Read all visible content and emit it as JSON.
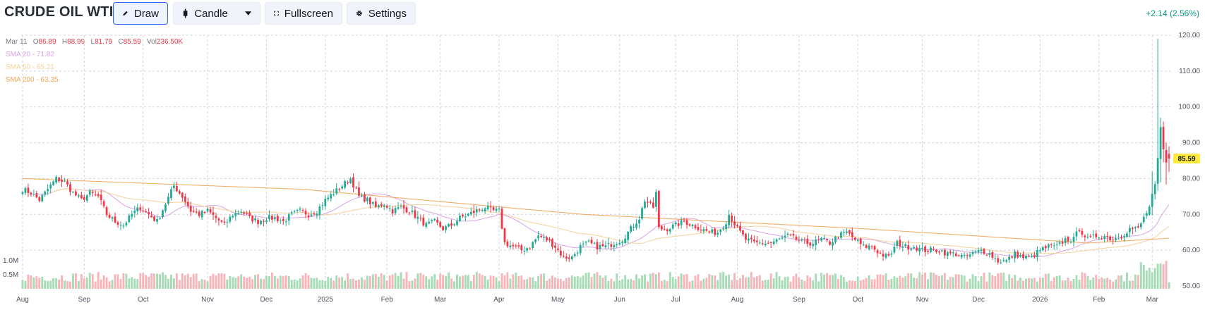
{
  "header": {
    "title": "CRUDE OIL WTI",
    "draw_label": "Draw",
    "chart_type_label": "Candle",
    "fullscreen_label": "Fullscreen",
    "settings_label": "Settings",
    "change_text": "+2.14 (2.56%)"
  },
  "legend": {
    "date": "Mar 11",
    "open_key": "O",
    "open": "86.89",
    "high_key": "H",
    "high": "88.99",
    "low_key": "L",
    "low": "81.79",
    "close_key": "C",
    "close": "85.59",
    "vol_key": "Vol",
    "vol": "236.50K",
    "sma20": "SMA 20 - 71.82",
    "sma50": "SMA 50 - 65.21",
    "sma200": "SMA 200 - 63.35"
  },
  "colors": {
    "up": "#22ab94",
    "down": "#f23645",
    "up_vol": "#a5dcb5",
    "down_vol": "#f9b4b9",
    "sma20": "#d9a3e6",
    "sma50": "#f3d29a",
    "sma200": "#f2a65a",
    "grid": "#d1d4dc",
    "last_price_bg": "#ffeb3b"
  },
  "chart_data": {
    "type": "candlestick",
    "title": "CRUDE OIL WTI",
    "ylim": [
      50,
      120
    ],
    "y_ticks": [
      "50.00",
      "60.00",
      "70.00",
      "80.00",
      "90.00",
      "100.00",
      "110.00",
      "120.00"
    ],
    "volume_ticks": [
      "1.0M",
      "0.5M"
    ],
    "volume_tick_values": [
      1000000,
      500000
    ],
    "x_labels": [
      "Aug",
      "Sep",
      "Oct",
      "Nov",
      "Dec",
      "2025",
      "Feb",
      "Mar",
      "Apr",
      "May",
      "Jun",
      "Jul",
      "Aug",
      "Sep",
      "Oct",
      "Nov",
      "Dec",
      "2026",
      "Feb",
      "Mar"
    ],
    "month_index": [
      0,
      22,
      43,
      66,
      87,
      108,
      130,
      149,
      170,
      191,
      213,
      233,
      255,
      277,
      298,
      321,
      341,
      363,
      384,
      403
    ],
    "grid": true,
    "last_price": "85.59",
    "close_path": [
      [
        0,
        77
      ],
      [
        3,
        76
      ],
      [
        6,
        74
      ],
      [
        9,
        77
      ],
      [
        12,
        80
      ],
      [
        15,
        79
      ],
      [
        18,
        76
      ],
      [
        21,
        74
      ],
      [
        24,
        76
      ],
      [
        27,
        75
      ],
      [
        30,
        70
      ],
      [
        33,
        68
      ],
      [
        36,
        67
      ],
      [
        39,
        70
      ],
      [
        42,
        72
      ],
      [
        45,
        70
      ],
      [
        48,
        68
      ],
      [
        51,
        73
      ],
      [
        54,
        78
      ],
      [
        57,
        75
      ],
      [
        60,
        71
      ],
      [
        63,
        70
      ],
      [
        66,
        71
      ],
      [
        69,
        69
      ],
      [
        72,
        67
      ],
      [
        75,
        70
      ],
      [
        78,
        71
      ],
      [
        81,
        69
      ],
      [
        84,
        68
      ],
      [
        87,
        69
      ],
      [
        90,
        69
      ],
      [
        93,
        68
      ],
      [
        96,
        70
      ],
      [
        99,
        71
      ],
      [
        102,
        70
      ],
      [
        105,
        71
      ],
      [
        108,
        74
      ],
      [
        111,
        76
      ],
      [
        114,
        78
      ],
      [
        117,
        80
      ],
      [
        120,
        75
      ],
      [
        123,
        74
      ],
      [
        126,
        72
      ],
      [
        129,
        73
      ],
      [
        132,
        71
      ],
      [
        135,
        72
      ],
      [
        138,
        71
      ],
      [
        141,
        69
      ],
      [
        144,
        67
      ],
      [
        147,
        68
      ],
      [
        150,
        66
      ],
      [
        153,
        67
      ],
      [
        156,
        69
      ],
      [
        159,
        70
      ],
      [
        162,
        71
      ],
      [
        165,
        72
      ],
      [
        168,
        71
      ],
      [
        170,
        71
      ],
      [
        172,
        62
      ],
      [
        175,
        61
      ],
      [
        178,
        60
      ],
      [
        181,
        61
      ],
      [
        184,
        64
      ],
      [
        187,
        63
      ],
      [
        190,
        61
      ],
      [
        193,
        58
      ],
      [
        196,
        58
      ],
      [
        199,
        61
      ],
      [
        202,
        62
      ],
      [
        205,
        61
      ],
      [
        208,
        61
      ],
      [
        211,
        62
      ],
      [
        214,
        63
      ],
      [
        217,
        66
      ],
      [
        220,
        69
      ],
      [
        222,
        74
      ],
      [
        225,
        72
      ],
      [
        226,
        76
      ],
      [
        227,
        66
      ],
      [
        230,
        66
      ],
      [
        233,
        67
      ],
      [
        236,
        68
      ],
      [
        239,
        67
      ],
      [
        242,
        66
      ],
      [
        245,
        65
      ],
      [
        248,
        65
      ],
      [
        251,
        68
      ],
      [
        252,
        70
      ],
      [
        255,
        66
      ],
      [
        258,
        63
      ],
      [
        261,
        62
      ],
      [
        264,
        62
      ],
      [
        267,
        62
      ],
      [
        270,
        63
      ],
      [
        273,
        64
      ],
      [
        276,
        63
      ],
      [
        279,
        62
      ],
      [
        282,
        62
      ],
      [
        285,
        63
      ],
      [
        288,
        62
      ],
      [
        291,
        64
      ],
      [
        294,
        65
      ],
      [
        297,
        63
      ],
      [
        300,
        61
      ],
      [
        303,
        61
      ],
      [
        306,
        59
      ],
      [
        309,
        58
      ],
      [
        312,
        62
      ],
      [
        315,
        61
      ],
      [
        318,
        61
      ],
      [
        321,
        60
      ],
      [
        324,
        60
      ],
      [
        327,
        60
      ],
      [
        330,
        59
      ],
      [
        333,
        59
      ],
      [
        336,
        58
      ],
      [
        339,
        59
      ],
      [
        342,
        60
      ],
      [
        345,
        59
      ],
      [
        348,
        57
      ],
      [
        351,
        57
      ],
      [
        354,
        59
      ],
      [
        357,
        58
      ],
      [
        360,
        58
      ],
      [
        363,
        60
      ],
      [
        366,
        61
      ],
      [
        369,
        61
      ],
      [
        372,
        63
      ],
      [
        375,
        63
      ],
      [
        377,
        66
      ],
      [
        380,
        63
      ],
      [
        383,
        64
      ],
      [
        386,
        64
      ],
      [
        389,
        63
      ],
      [
        392,
        64
      ],
      [
        395,
        66
      ],
      [
        398,
        66
      ],
      [
        400,
        69
      ],
      [
        402,
        72
      ],
      [
        404,
        78
      ],
      [
        405,
        85
      ],
      [
        406,
        94
      ],
      [
        407,
        88
      ],
      [
        408,
        84
      ],
      [
        409,
        85.59
      ]
    ],
    "sma200_path": [
      [
        0,
        80
      ],
      [
        100,
        77
      ],
      [
        200,
        70
      ],
      [
        300,
        66
      ],
      [
        380,
        62
      ],
      [
        409,
        63.35
      ]
    ],
    "series": [
      {
        "name": "SMA 20",
        "last": 71.82
      },
      {
        "name": "SMA 50",
        "last": 65.21
      },
      {
        "name": "SMA 200",
        "last": 63.35
      }
    ],
    "last_bar": {
      "date": "Mar 11",
      "open": 86.89,
      "high": 88.99,
      "low": 81.79,
      "close": 85.59,
      "volume": 236500
    }
  }
}
